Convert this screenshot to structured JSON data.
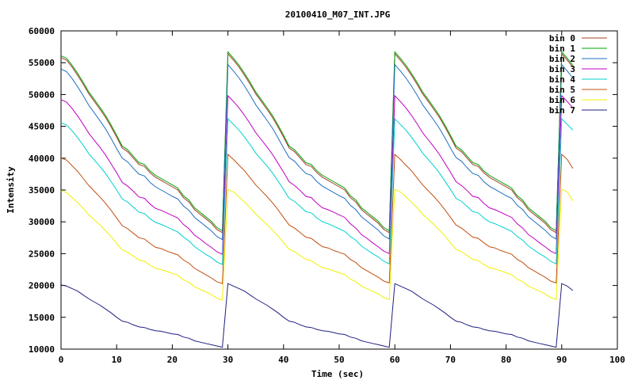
{
  "chart_data": {
    "type": "line",
    "title": "20100410_M07_INT.JPG",
    "xlabel": "Time (sec)",
    "ylabel": "Intensity",
    "xlim": [
      0,
      100
    ],
    "ylim": [
      10000,
      60000
    ],
    "x_ticks": [
      "0",
      "10",
      "20",
      "30",
      "40",
      "50",
      "60",
      "70",
      "80",
      "90",
      "100"
    ],
    "y_ticks": [
      "10000",
      "15000",
      "20000",
      "25000",
      "30000",
      "35000",
      "40000",
      "45000",
      "50000",
      "55000",
      "60000"
    ],
    "legend_position": "top-right",
    "x": [
      0,
      1,
      2,
      3,
      4,
      5,
      6,
      7,
      8,
      9,
      10,
      11,
      12,
      13,
      14,
      15,
      16,
      17,
      18,
      19,
      20,
      21,
      22,
      23,
      24,
      25,
      26,
      27,
      28,
      29,
      30,
      31,
      32,
      33,
      34,
      35,
      36,
      37,
      38,
      39,
      40,
      41,
      42,
      43,
      44,
      45,
      46,
      47,
      48,
      49,
      50,
      51,
      52,
      53,
      54,
      55,
      56,
      57,
      58,
      59,
      60,
      61,
      62,
      63,
      64,
      65,
      66,
      67,
      68,
      69,
      70,
      71,
      72,
      73,
      74,
      75,
      76,
      77,
      78,
      79,
      80,
      81,
      82,
      83,
      84,
      85,
      86,
      87,
      88,
      89,
      90,
      91,
      92
    ],
    "series": [
      {
        "name": "bin 0",
        "color": "#a0402a",
        "values": [
          55800,
          55400,
          54300,
          53000,
          51600,
          50100,
          48900,
          47700,
          46400,
          44900,
          43300,
          41600,
          41000,
          40000,
          39000,
          38700,
          37700,
          37000,
          36500,
          36000,
          35500,
          35000,
          33800,
          33100,
          31900,
          31200,
          30500,
          29800,
          28800,
          28300,
          56400,
          55400,
          54300,
          53000,
          51600,
          50100,
          48900,
          47700,
          46400,
          44900,
          43300,
          41600,
          41000,
          40000,
          39000,
          38700,
          37700,
          37000,
          36500,
          36000,
          35500,
          35000,
          33800,
          33100,
          31900,
          31200,
          30500,
          29800,
          28800,
          28300,
          56400,
          55400,
          54300,
          53000,
          51600,
          50100,
          48900,
          47700,
          46400,
          44900,
          43300,
          41600,
          41000,
          40000,
          39000,
          38700,
          37700,
          37000,
          36500,
          36000,
          35500,
          35000,
          33800,
          33100,
          31900,
          31200,
          30500,
          29800,
          28800,
          28300,
          56400,
          55400,
          54300
        ]
      },
      {
        "name": "bin 1",
        "color": "#00a000",
        "values": [
          56100,
          55700,
          54600,
          53300,
          51900,
          50400,
          49200,
          48000,
          46700,
          45200,
          43600,
          41900,
          41300,
          40300,
          39300,
          39000,
          38000,
          37300,
          36800,
          36300,
          35800,
          35300,
          34100,
          33400,
          32200,
          31500,
          30800,
          30100,
          29100,
          28600,
          56700,
          55700,
          54600,
          53300,
          51900,
          50400,
          49200,
          48000,
          46700,
          45200,
          43600,
          41900,
          41300,
          40300,
          39300,
          39000,
          38000,
          37300,
          36800,
          36300,
          35800,
          35300,
          34100,
          33400,
          32200,
          31500,
          30800,
          30100,
          29100,
          28600,
          56700,
          55700,
          54600,
          53300,
          51900,
          50400,
          49200,
          48000,
          46700,
          45200,
          43600,
          41900,
          41300,
          40300,
          39300,
          39000,
          38000,
          37300,
          36800,
          36300,
          35800,
          35300,
          34100,
          33400,
          32200,
          31500,
          30800,
          30100,
          29100,
          28600,
          56700,
          55700,
          54600
        ]
      },
      {
        "name": "bin 2",
        "color": "#1f6fc0",
        "values": [
          54000,
          53600,
          52500,
          51200,
          49800,
          48300,
          47100,
          45900,
          44600,
          43100,
          41500,
          40000,
          39400,
          38400,
          37500,
          37200,
          36200,
          35500,
          35000,
          34500,
          34000,
          33600,
          32500,
          31800,
          30700,
          30000,
          29300,
          28600,
          27700,
          27200,
          54700,
          53700,
          52600,
          51300,
          49900,
          48400,
          47200,
          46000,
          44700,
          43200,
          41600,
          40100,
          39500,
          38500,
          37600,
          37300,
          36300,
          35600,
          35100,
          34600,
          34100,
          33700,
          32600,
          31900,
          30800,
          30100,
          29400,
          28700,
          27800,
          27300,
          54700,
          53700,
          52600,
          51300,
          49900,
          48400,
          47200,
          46000,
          44700,
          43200,
          41600,
          40100,
          39500,
          38500,
          37600,
          37300,
          36300,
          35600,
          35100,
          34600,
          34100,
          33700,
          32600,
          31900,
          30800,
          30100,
          29400,
          28700,
          27800,
          27300,
          54700,
          53700,
          52600
        ]
      },
      {
        "name": "bin 3",
        "color": "#c000c0",
        "values": [
          49200,
          48800,
          47800,
          46600,
          45300,
          43900,
          42800,
          41700,
          40500,
          39100,
          37700,
          36200,
          35600,
          34800,
          33900,
          33700,
          32800,
          32100,
          31800,
          31400,
          31000,
          30600,
          29600,
          28900,
          27900,
          27300,
          26600,
          26000,
          25300,
          24900,
          49800,
          48900,
          47900,
          46700,
          45400,
          44000,
          42900,
          41800,
          40600,
          39200,
          37800,
          36300,
          35700,
          34900,
          34000,
          33800,
          32900,
          32200,
          31900,
          31500,
          31100,
          30700,
          29700,
          29000,
          28000,
          27400,
          26700,
          26100,
          25400,
          25000,
          49800,
          48900,
          47900,
          46700,
          45400,
          44000,
          42900,
          41800,
          40600,
          39200,
          37800,
          36300,
          35700,
          34900,
          34000,
          33800,
          32900,
          32200,
          31900,
          31500,
          31100,
          30700,
          29700,
          29000,
          28000,
          27400,
          26700,
          26100,
          25400,
          25000,
          49800,
          48900,
          47900
        ]
      },
      {
        "name": "bin 4",
        "color": "#00d0d0",
        "values": [
          45600,
          45200,
          44300,
          43200,
          42000,
          40700,
          39700,
          38700,
          37600,
          36300,
          35000,
          33600,
          33100,
          32300,
          31500,
          31300,
          30500,
          29900,
          29600,
          29200,
          28800,
          28400,
          27600,
          27000,
          26100,
          25500,
          24900,
          24400,
          23700,
          23300,
          46200,
          45300,
          44400,
          43300,
          42100,
          40800,
          39800,
          38800,
          37700,
          36400,
          35100,
          33700,
          33200,
          32400,
          31600,
          31400,
          30600,
          30000,
          29700,
          29300,
          28900,
          28500,
          27700,
          27100,
          26200,
          25600,
          25000,
          24500,
          23800,
          23400,
          46200,
          45300,
          44400,
          43300,
          42100,
          40800,
          39800,
          38800,
          37700,
          36400,
          35100,
          33700,
          33200,
          32400,
          31600,
          31400,
          30600,
          30000,
          29700,
          29300,
          28900,
          28500,
          27700,
          27100,
          26200,
          25600,
          25000,
          24500,
          23800,
          23400,
          46200,
          45300,
          44400
        ]
      },
      {
        "name": "bin 5",
        "color": "#c05010",
        "values": [
          40000,
          39700,
          38800,
          37900,
          36800,
          35700,
          34800,
          33900,
          32900,
          31800,
          30600,
          29400,
          28900,
          28200,
          27500,
          27300,
          26600,
          26000,
          25800,
          25400,
          25100,
          24800,
          24000,
          23500,
          22700,
          22200,
          21700,
          21200,
          20600,
          20300,
          40600,
          39800,
          38900,
          38000,
          36900,
          35800,
          34900,
          34000,
          33000,
          31900,
          30700,
          29500,
          29000,
          28300,
          27600,
          27400,
          26700,
          26100,
          25900,
          25500,
          25200,
          24900,
          24100,
          23600,
          22800,
          22300,
          21800,
          21300,
          20700,
          20400,
          40600,
          39800,
          38900,
          38000,
          36900,
          35800,
          34900,
          34000,
          33000,
          31900,
          30700,
          29500,
          29000,
          28300,
          27600,
          27400,
          26700,
          26100,
          25900,
          25500,
          25200,
          24900,
          24100,
          23600,
          22800,
          22300,
          21800,
          21300,
          20700,
          20400,
          40600,
          39800,
          38400
        ]
      },
      {
        "name": "bin 6",
        "color": "#f0f000",
        "values": [
          34900,
          34600,
          33800,
          33000,
          32100,
          31100,
          30300,
          29500,
          28600,
          27700,
          26600,
          25600,
          25200,
          24600,
          24000,
          23800,
          23200,
          22700,
          22500,
          22200,
          21900,
          21600,
          20900,
          20500,
          19800,
          19400,
          19000,
          18600,
          18000,
          17700,
          35100,
          34700,
          33900,
          33100,
          32200,
          31200,
          30400,
          29600,
          28700,
          27800,
          26700,
          25700,
          25300,
          24700,
          24100,
          23900,
          23300,
          22800,
          22600,
          22300,
          22000,
          21700,
          21000,
          20600,
          19900,
          19500,
          19100,
          18700,
          18100,
          17800,
          35100,
          34700,
          33900,
          33100,
          32200,
          31200,
          30400,
          29600,
          28700,
          27800,
          26700,
          25700,
          25300,
          24700,
          24100,
          23900,
          23300,
          22800,
          22600,
          22300,
          22000,
          21700,
          21000,
          20600,
          19900,
          19500,
          19100,
          18700,
          18100,
          17800,
          35100,
          34700,
          33300
        ]
      },
      {
        "name": "bin 7",
        "color": "#202080",
        "values": [
          20100,
          19900,
          19500,
          19100,
          18500,
          17900,
          17400,
          16900,
          16300,
          15700,
          15000,
          14400,
          14200,
          13800,
          13500,
          13400,
          13100,
          12900,
          12800,
          12600,
          12400,
          12300,
          11900,
          11700,
          11300,
          11100,
          10900,
          10700,
          10500,
          10300,
          20300,
          19900,
          19500,
          19100,
          18500,
          17900,
          17400,
          16900,
          16300,
          15700,
          15000,
          14400,
          14200,
          13800,
          13500,
          13400,
          13100,
          12900,
          12800,
          12600,
          12400,
          12300,
          11900,
          11700,
          11300,
          11100,
          10900,
          10700,
          10500,
          10300,
          20300,
          19900,
          19500,
          19100,
          18500,
          17900,
          17400,
          16900,
          16300,
          15700,
          15000,
          14400,
          14200,
          13800,
          13500,
          13400,
          13100,
          12900,
          12800,
          12600,
          12400,
          12300,
          11900,
          11700,
          11300,
          11100,
          10900,
          10700,
          10500,
          10300,
          20300,
          19900,
          19200
        ]
      }
    ]
  }
}
